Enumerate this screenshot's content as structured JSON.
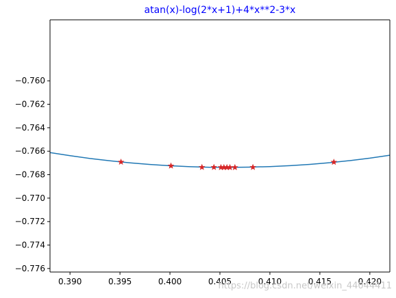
{
  "chart_data": {
    "type": "line",
    "title": "atan(x)-log(2*x+1)+4*x**2-3*x",
    "title_color": "#0000ff",
    "xlabel": "",
    "ylabel": "",
    "xlim": [
      0.388,
      0.422
    ],
    "ylim": [
      -0.7763,
      -0.7548
    ],
    "x_ticks": [
      0.39,
      0.395,
      0.4,
      0.405,
      0.41,
      0.415,
      0.42
    ],
    "x_tick_labels": [
      "0.390",
      "0.395",
      "0.400",
      "0.405",
      "0.410",
      "0.415",
      "0.420"
    ],
    "y_ticks": [
      -0.76,
      -0.762,
      -0.764,
      -0.766,
      -0.768,
      -0.77,
      -0.772,
      -0.774,
      -0.776
    ],
    "y_tick_labels": [
      "−0.760",
      "−0.762",
      "−0.764",
      "−0.766",
      "−0.768",
      "−0.770",
      "−0.772",
      "−0.774",
      "−0.776"
    ],
    "grid": false,
    "series": [
      {
        "kind": "curve",
        "color": "#1f77b4",
        "x": [
          0.388,
          0.39,
          0.392,
          0.394,
          0.396,
          0.398,
          0.4,
          0.402,
          0.404,
          0.406,
          0.408,
          0.41,
          0.412,
          0.414,
          0.416,
          0.418,
          0.42,
          0.422
        ],
        "y": [
          -0.76612,
          -0.76638,
          -0.76662,
          -0.76682,
          -0.76699,
          -0.76713,
          -0.76724,
          -0.76732,
          -0.76737,
          -0.76738,
          -0.76736,
          -0.76731,
          -0.76723,
          -0.76712,
          -0.76698,
          -0.7668,
          -0.76659,
          -0.76634
        ]
      },
      {
        "kind": "markers",
        "marker": "star",
        "color": "#d62728",
        "x": [
          0.3951,
          0.4001,
          0.4032,
          0.4044,
          0.4051,
          0.4054,
          0.4057,
          0.406,
          0.4065,
          0.4083,
          0.4164
        ],
        "y": [
          -0.76692,
          -0.76725,
          -0.76737,
          -0.76737,
          -0.76738,
          -0.76738,
          -0.76738,
          -0.76738,
          -0.76738,
          -0.76737,
          -0.76693
        ]
      }
    ]
  },
  "watermark": "https://blog.csdn.net/weixin_44044411"
}
